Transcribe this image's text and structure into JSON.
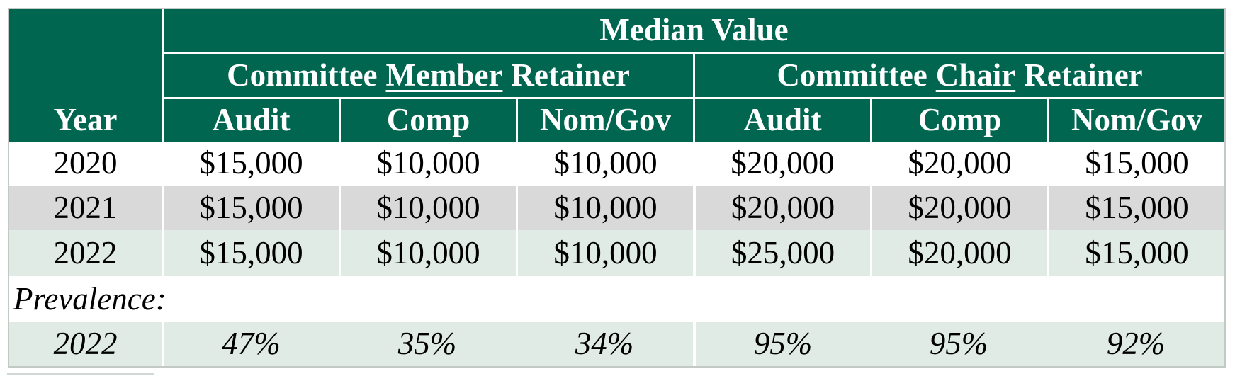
{
  "table": {
    "title": "Median Value",
    "year_label": "Year",
    "groups": [
      {
        "prefix": "Committee",
        "emph": "Member",
        "suffix": "Retainer"
      },
      {
        "prefix": "Committee",
        "emph": "Chair",
        "suffix": "Retainer"
      }
    ],
    "subheaders": [
      "Audit",
      "Comp",
      "Nom/Gov",
      "Audit",
      "Comp",
      "Nom/Gov"
    ],
    "median_rows": [
      {
        "year": "2020",
        "values": [
          "$15,000",
          "$10,000",
          "$10,000",
          "$20,000",
          "$20,000",
          "$15,000"
        ]
      },
      {
        "year": "2021",
        "values": [
          "$15,000",
          "$10,000",
          "$10,000",
          "$20,000",
          "$20,000",
          "$15,000"
        ]
      },
      {
        "year": "2022",
        "values": [
          "$15,000",
          "$10,000",
          "$10,000",
          "$25,000",
          "$20,000",
          "$15,000"
        ]
      }
    ],
    "prevalence_label": "Prevalence:",
    "prevalence_row": {
      "year": "2022",
      "values": [
        "47%",
        "35%",
        "34%",
        "95%",
        "95%",
        "92%"
      ]
    },
    "colors": {
      "header_green": "#01664F",
      "header_text": "#FFFFFF",
      "row_grey": "#D9D9D9",
      "row_light_green": "#E0EBE5",
      "row_white": "#FFFFFF",
      "divider_white": "#FFFFFF",
      "outer_border_grey": "#C3CAC6",
      "body_text": "#000000"
    }
  },
  "chart_data": {
    "type": "table",
    "title": "Median Value",
    "column_groups": [
      {
        "label": "Committee Member Retainer",
        "columns": [
          "Audit",
          "Comp",
          "Nom/Gov"
        ]
      },
      {
        "label": "Committee Chair Retainer",
        "columns": [
          "Audit",
          "Comp",
          "Nom/Gov"
        ]
      }
    ],
    "columns": [
      "Year",
      "Member Audit",
      "Member Comp",
      "Member Nom/Gov",
      "Chair Audit",
      "Chair Comp",
      "Chair Nom/Gov"
    ],
    "rows": [
      [
        "2020",
        "$15,000",
        "$10,000",
        "$10,000",
        "$20,000",
        "$20,000",
        "$15,000"
      ],
      [
        "2021",
        "$15,000",
        "$10,000",
        "$10,000",
        "$20,000",
        "$20,000",
        "$15,000"
      ],
      [
        "2022",
        "$15,000",
        "$10,000",
        "$10,000",
        "$25,000",
        "$20,000",
        "$15,000"
      ]
    ],
    "prevalence_section_label": "Prevalence:",
    "prevalence_rows": [
      [
        "2022",
        "47%",
        "35%",
        "34%",
        "95%",
        "95%",
        "92%"
      ]
    ]
  }
}
